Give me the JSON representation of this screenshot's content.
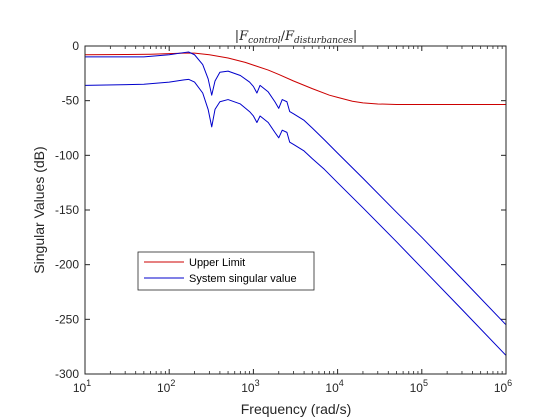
{
  "chart_data": {
    "type": "line",
    "title": "|F_{control}/F_{disturbances}|",
    "title_parts": {
      "open_bar": "|",
      "f1": "F",
      "sub1": "control",
      "slash": "/",
      "f2": "F",
      "sub2": "disturbances",
      "close_bar": "|"
    },
    "xlabel": "Frequency (rad/s)",
    "ylabel": "Singular Values (dB)",
    "xscale": "log",
    "xlim": [
      10,
      1000000
    ],
    "ylim": [
      -300,
      0
    ],
    "grid": false,
    "legend_position": "lower-left",
    "x_ticks": [
      {
        "base": "10",
        "exp": "1",
        "value": 10
      },
      {
        "base": "10",
        "exp": "2",
        "value": 100
      },
      {
        "base": "10",
        "exp": "3",
        "value": 1000
      },
      {
        "base": "10",
        "exp": "4",
        "value": 10000
      },
      {
        "base": "10",
        "exp": "5",
        "value": 100000
      },
      {
        "base": "10",
        "exp": "6",
        "value": 1000000
      }
    ],
    "y_ticks": [
      {
        "label": "0",
        "value": 0
      },
      {
        "label": "-50",
        "value": -50
      },
      {
        "label": "-100",
        "value": -100
      },
      {
        "label": "-150",
        "value": -150
      },
      {
        "label": "-200",
        "value": -200
      },
      {
        "label": "-250",
        "value": -250
      },
      {
        "label": "-300",
        "value": -300
      }
    ],
    "series": [
      {
        "name": "Upper Limit",
        "color": "#cc0000",
        "x": [
          10,
          30,
          60,
          100,
          150,
          200,
          300,
          500,
          800,
          1000,
          1500,
          2000,
          3000,
          5000,
          8000,
          10000,
          15000,
          20000,
          30000,
          50000,
          100000,
          300000,
          1000000
        ],
        "y": [
          -8,
          -7.8,
          -7.5,
          -7,
          -6.5,
          -6.5,
          -8,
          -11,
          -15,
          -17.5,
          -22,
          -26,
          -32,
          -39,
          -45,
          -47,
          -50.5,
          -52,
          -53,
          -53.5,
          -53.5,
          -53.5,
          -53.5
        ]
      },
      {
        "name": "System singular value",
        "color": "#0000cc",
        "x": [
          10,
          50,
          100,
          150,
          170,
          200,
          250,
          290,
          320,
          350,
          400,
          500,
          700,
          900,
          1000,
          1100,
          1200,
          1500,
          1800,
          2000,
          2200,
          2500,
          2700,
          3000,
          4000,
          5000,
          7000,
          10000,
          20000,
          50000,
          100000,
          300000,
          1000000
        ],
        "y": [
          -10,
          -10,
          -8,
          -6,
          -5.5,
          -8,
          -17,
          -30,
          -45,
          -32,
          -24,
          -23,
          -27,
          -33,
          -37,
          -43,
          -36,
          -42,
          -51,
          -57,
          -49,
          -51,
          -60,
          -62,
          -68,
          -75,
          -86,
          -98,
          -121,
          -152,
          -175,
          -213,
          -255
        ]
      },
      {
        "name": "",
        "color": "#0000cc",
        "x": [
          10,
          50,
          100,
          150,
          170,
          200,
          250,
          290,
          320,
          350,
          400,
          500,
          700,
          900,
          1000,
          1100,
          1200,
          1500,
          1800,
          2000,
          2200,
          2500,
          2700,
          3000,
          4000,
          5000,
          7000,
          10000,
          20000,
          50000,
          100000,
          300000,
          1000000
        ],
        "y": [
          -36,
          -35,
          -33,
          -31,
          -30.5,
          -33,
          -43,
          -58,
          -74,
          -58,
          -51,
          -49,
          -53,
          -60,
          -64,
          -70,
          -64,
          -70,
          -79,
          -84,
          -77,
          -79,
          -88,
          -90,
          -96,
          -103,
          -113,
          -125,
          -148,
          -179,
          -203,
          -241,
          -283
        ]
      }
    ]
  }
}
